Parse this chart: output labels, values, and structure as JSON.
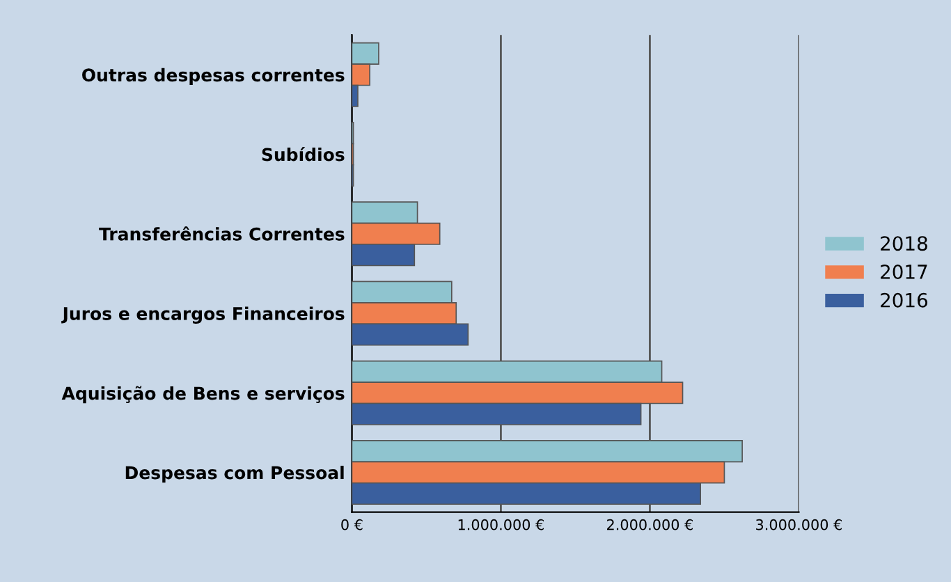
{
  "chart_data": {
    "type": "bar",
    "orientation": "horizontal",
    "categories": [
      "Outras despesas correntes",
      "Subídios",
      "Transferências Correntes",
      "Juros e encargos Financeiros",
      "Aquisição de Bens e serviços",
      "Despesas com Pessoal"
    ],
    "series": [
      {
        "name": "2018",
        "color": "#8fc4cf",
        "values": [
          180000,
          10000,
          440000,
          670000,
          2080000,
          2620000
        ]
      },
      {
        "name": "2017",
        "color": "#f07f4f",
        "values": [
          120000,
          10000,
          590000,
          700000,
          2220000,
          2500000
        ]
      },
      {
        "name": "2016",
        "color": "#3a5f9e",
        "values": [
          40000,
          10000,
          420000,
          780000,
          1940000,
          2340000
        ]
      }
    ],
    "xlim": [
      0,
      3000000
    ],
    "xticks": [
      {
        "value": 0,
        "label": "0 €"
      },
      {
        "value": 1000000,
        "label": "1.000.000 €"
      },
      {
        "value": 2000000,
        "label": "2.000.000 €"
      },
      {
        "value": 3000000,
        "label": "3.000.000 €"
      }
    ],
    "grid": "x",
    "legend": "right"
  }
}
